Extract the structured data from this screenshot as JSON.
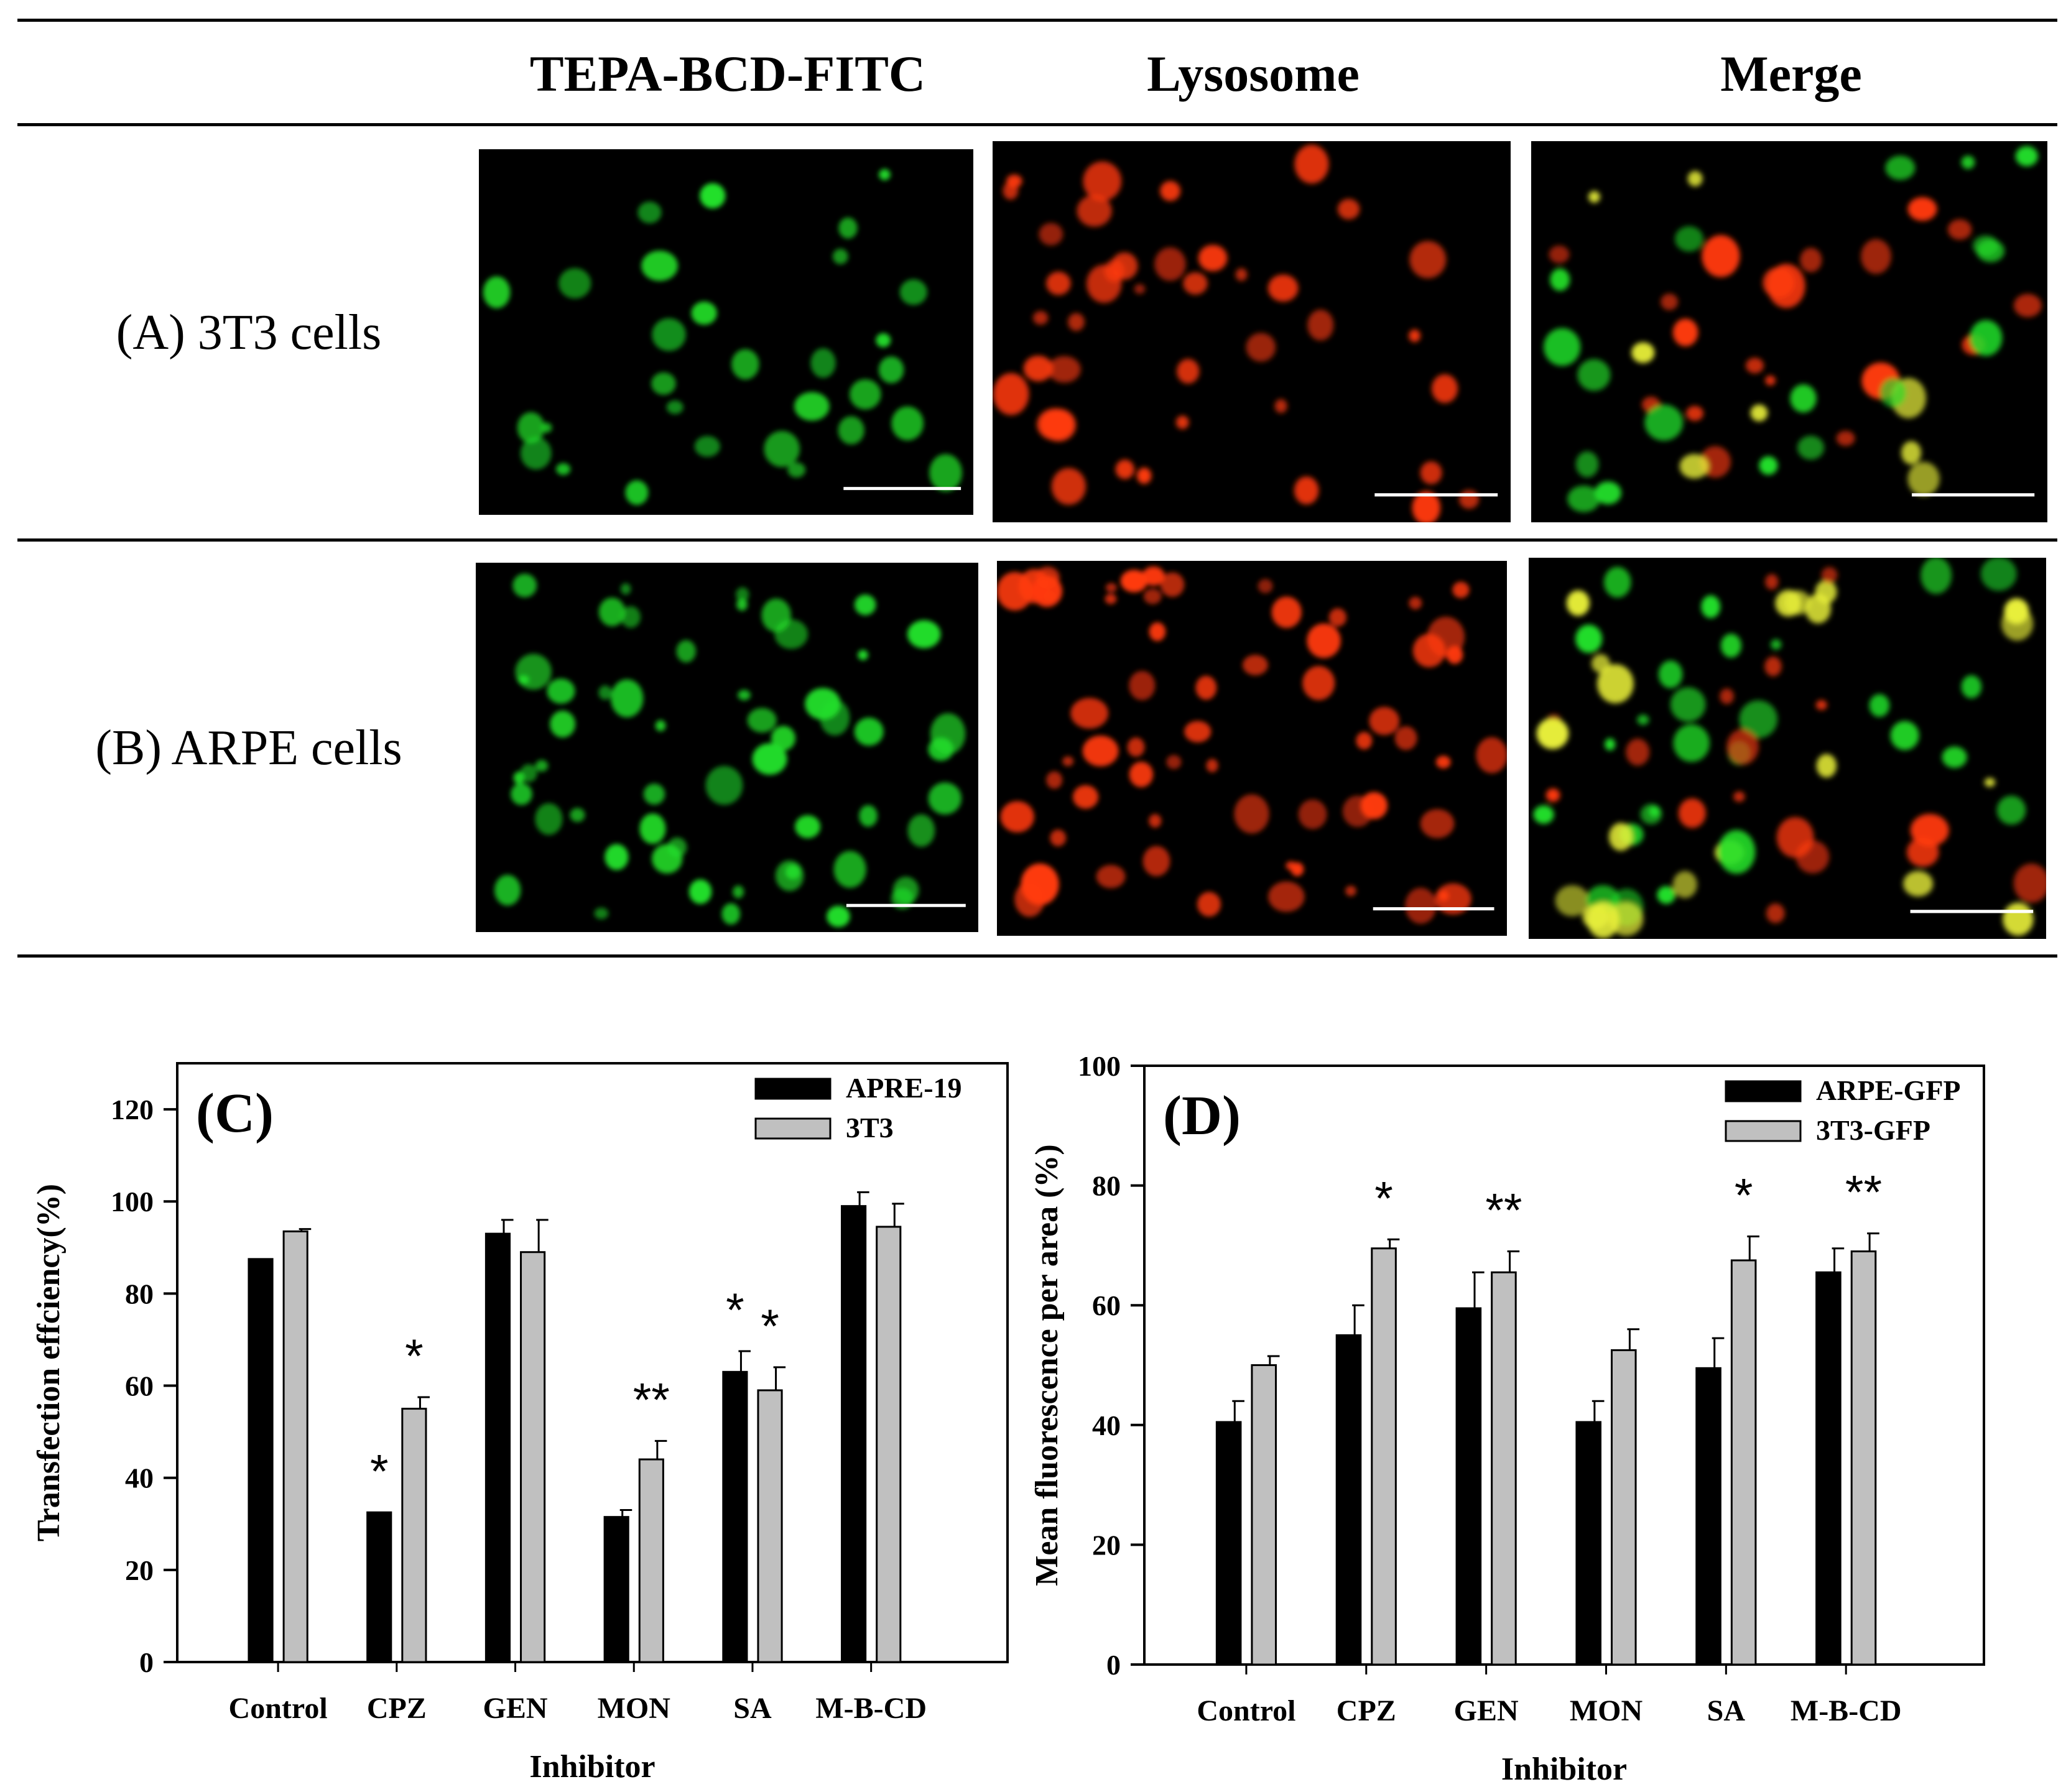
{
  "figure": {
    "table": {
      "columns": [
        "TEPA-BCD-FITC",
        "Lysosome",
        "Merge"
      ],
      "rows": [
        "(A) 3T3 cells",
        "(B) ARPE cells"
      ]
    }
  },
  "colors": {
    "series_dark": "#000000",
    "series_light": "#c0c0c0",
    "fitc_green": "#22e02a",
    "lyso_red": "#ff3a10",
    "merge_yellow": "#e8ef3a"
  },
  "chart_data": [
    {
      "type": "bar",
      "panel": "(C)",
      "xlabel": "Inhibitor",
      "ylabel": "Transfection effciency(%)",
      "ylim": [
        0,
        130
      ],
      "yticks": [
        0,
        20,
        40,
        60,
        80,
        100,
        120
      ],
      "legend": "top-right",
      "categories": [
        "Control",
        "CPZ",
        "GEN",
        "MON",
        "SA",
        "M-B-CD"
      ],
      "series": [
        {
          "name": "APRE-19",
          "values": [
            87.5,
            32.5,
            93,
            31.5,
            63,
            99
          ],
          "errors": [
            0,
            0,
            3,
            1.5,
            4.5,
            3
          ]
        },
        {
          "name": "3T3",
          "values": [
            93.5,
            55,
            89,
            44,
            59,
            94.5
          ],
          "errors": [
            0.5,
            2.5,
            7,
            4,
            5,
            5
          ]
        }
      ],
      "annotations": [
        {
          "category": "CPZ",
          "series": 0,
          "text": "*"
        },
        {
          "category": "CPZ",
          "series": 1,
          "text": "*"
        },
        {
          "category": "MON",
          "series": 1,
          "text": "**"
        },
        {
          "category": "SA",
          "series": 0,
          "text": "*"
        },
        {
          "category": "SA",
          "series": 1,
          "text": "*"
        }
      ]
    },
    {
      "type": "bar",
      "panel": "(D)",
      "xlabel": "Inhibitor",
      "ylabel": "Mean fluorescence per area (%)",
      "ylim": [
        0,
        100
      ],
      "yticks": [
        0,
        20,
        40,
        60,
        80,
        100
      ],
      "legend": "top-right",
      "categories": [
        "Control",
        "CPZ",
        "GEN",
        "MON",
        "SA",
        "M-B-CD"
      ],
      "series": [
        {
          "name": "ARPE-GFP",
          "values": [
            40.5,
            55,
            59.5,
            40.5,
            49.5,
            65.5
          ],
          "errors": [
            3.5,
            5,
            6,
            3.5,
            5,
            4
          ]
        },
        {
          "name": "3T3-GFP",
          "values": [
            50,
            69.5,
            65.5,
            52.5,
            67.5,
            69
          ],
          "errors": [
            1.5,
            1.5,
            3.5,
            3.5,
            4,
            3
          ]
        }
      ],
      "annotations": [
        {
          "category": "CPZ",
          "series": 1,
          "text": "*"
        },
        {
          "category": "GEN",
          "series": 1,
          "text": "**"
        },
        {
          "category": "SA",
          "series": 1,
          "text": "*"
        },
        {
          "category": "M-B-CD",
          "series": 1,
          "text": "**"
        }
      ]
    }
  ]
}
